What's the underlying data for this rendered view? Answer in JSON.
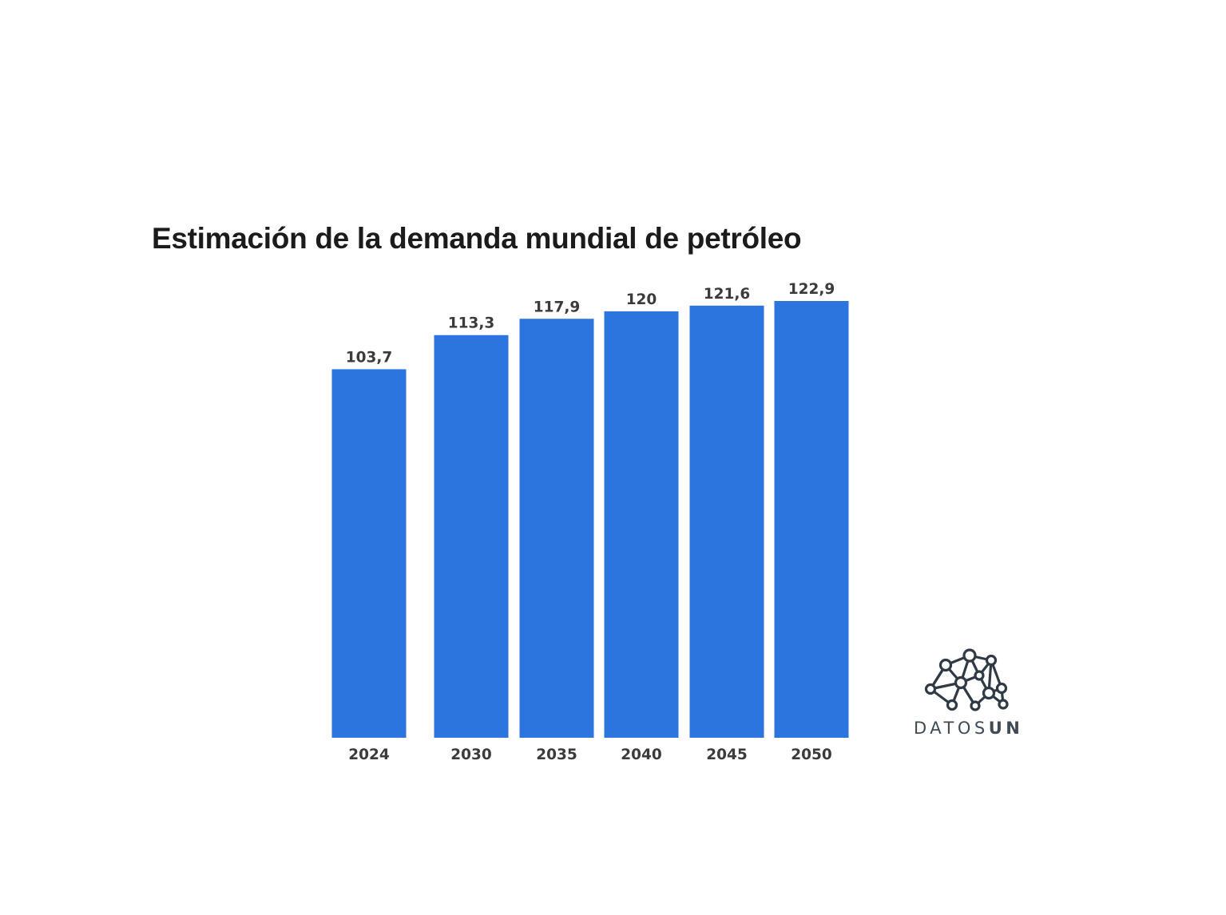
{
  "chart_data": {
    "type": "bar",
    "title": "Estimación de la demanda mundial de petróleo",
    "categories": [
      "2024",
      "2030",
      "2035",
      "2040",
      "2045",
      "2050"
    ],
    "values": [
      103.7,
      113.3,
      117.9,
      120,
      121.6,
      122.9
    ],
    "value_labels": [
      "103,7",
      "113,3",
      "117,9",
      "120",
      "121,6",
      "122,9"
    ],
    "xlabel": "",
    "ylabel": "",
    "ylim": [
      0,
      122.9
    ],
    "grid": false,
    "legend": "none",
    "colors": {
      "bar": "#2c74de",
      "text": "#3b3b3b",
      "title": "#1b1b1b"
    }
  },
  "logo": {
    "text_light": "DATOS",
    "text_strong": "UN",
    "icon": "network-brain-icon"
  }
}
